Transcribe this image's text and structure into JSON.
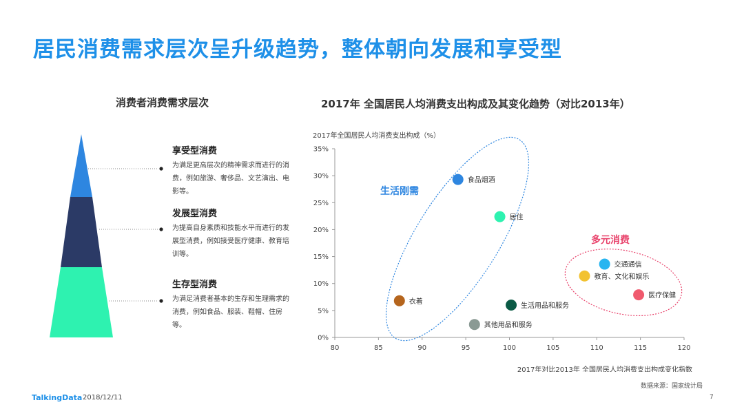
{
  "page": {
    "title": "居民消费需求层次呈升级趋势，整体朝向发展和享受型",
    "left_title": "消费者消费需求层次",
    "right_title": "2017年  全国居民人均消费支出构成及其变化趋势（对比2013年）"
  },
  "pyramid": {
    "tiers": [
      {
        "title": "享受型消费",
        "desc": "为满足更高层次的精神需求而进行的消费，例如旅游、奢侈品、文艺演出、电影等。",
        "color": "#2e86e0"
      },
      {
        "title": "发展型消费",
        "desc": "为提高自身素质和技能水平而进行的发展型消费，例如接受医疗健康、教育培训等。",
        "color": "#2b3a66"
      },
      {
        "title": "生存型消费",
        "desc": "为满足消费者基本的生存和生理需求的消费，例如食品、服装、鞋帽、住房等。",
        "color": "#2ef2b0"
      }
    ]
  },
  "chart_data": {
    "type": "scatter",
    "ylabel": "2017年全国居民人均消费支出构成（%）",
    "xlabel": "2017年对比2013年  全国居民人均消费支出构成变化指数",
    "xlim": [
      80,
      120
    ],
    "ylim": [
      0,
      35
    ],
    "xticks": [
      "80",
      "85",
      "90",
      "95",
      "100",
      "105",
      "110",
      "115",
      "120"
    ],
    "yticks": [
      "0%",
      "5%",
      "10%",
      "15%",
      "20%",
      "25%",
      "30%",
      "35%"
    ],
    "points": [
      {
        "label": "食品烟酒",
        "x": 94.1,
        "y": 29.3,
        "color": "#2e86e0"
      },
      {
        "label": "居住",
        "x": 98.9,
        "y": 22.4,
        "color": "#2ef2b0"
      },
      {
        "label": "衣着",
        "x": 87.4,
        "y": 6.8,
        "color": "#b5651d"
      },
      {
        "label": "生活用品和服务",
        "x": 100.2,
        "y": 6.0,
        "color": "#0b5a45"
      },
      {
        "label": "其他用品和服务",
        "x": 96.0,
        "y": 2.4,
        "color": "#8a9a94"
      },
      {
        "label": "交通通信",
        "x": 110.9,
        "y": 13.6,
        "color": "#27b5f0"
      },
      {
        "label": "教育、文化和娱乐",
        "x": 108.6,
        "y": 11.4,
        "color": "#f2c230"
      },
      {
        "label": "医疗保健",
        "x": 114.8,
        "y": 7.9,
        "color": "#f05a6e"
      }
    ],
    "groups": [
      {
        "label": "生活刚需",
        "color": "#2e86e0"
      },
      {
        "label": "多元消费",
        "color": "#e8416a"
      }
    ]
  },
  "footer": {
    "logo": "TalkingData",
    "date": "2018/12/11",
    "source": "数据来源：国家统计局",
    "page": "7"
  }
}
